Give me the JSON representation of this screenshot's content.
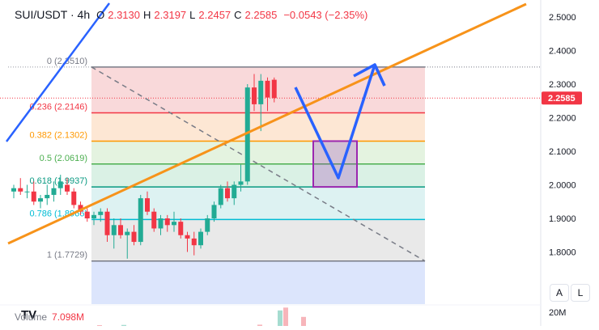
{
  "legend": {
    "symbol": "SUI/USDT · 4h",
    "open_label": "O",
    "open": "2.3130",
    "high_label": "H",
    "high": "2.3197",
    "low_label": "L",
    "low": "2.2457",
    "close_label": "C",
    "close": "2.2585",
    "change": "−0.0543 (−2.35%)"
  },
  "volume": {
    "label": "Volume",
    "value": "7.098M",
    "axis_label": "20M"
  },
  "scale_buttons": {
    "auto": "A",
    "log": "L"
  },
  "logo_text": "TV",
  "colors": {
    "up": "#22ab94",
    "down": "#f23645",
    "trendline": "#f7931a",
    "blue_line": "#2962ff",
    "target_box": "#9c27b0"
  },
  "chart_data": {
    "type": "candlestick",
    "ylim": [
      1.74,
      2.53
    ],
    "y_ticks": [
      "2.5000",
      "2.4000",
      "2.3000",
      "2.2000",
      "2.1000",
      "2.0000",
      "1.9000",
      "1.8000"
    ],
    "last_price": "2.2585",
    "candles": [
      {
        "o": 1.98,
        "h": 2.0,
        "l": 1.96,
        "c": 1.99
      },
      {
        "o": 1.99,
        "h": 2.02,
        "l": 1.97,
        "c": 1.98
      },
      {
        "o": 1.98,
        "h": 2.0,
        "l": 1.96,
        "c": 1.98
      },
      {
        "o": 1.98,
        "h": 2.01,
        "l": 1.94,
        "c": 1.95
      },
      {
        "o": 1.95,
        "h": 1.97,
        "l": 1.93,
        "c": 1.96
      },
      {
        "o": 1.96,
        "h": 2.0,
        "l": 1.94,
        "c": 1.97
      },
      {
        "o": 1.97,
        "h": 2.01,
        "l": 1.95,
        "c": 1.99
      },
      {
        "o": 1.99,
        "h": 2.03,
        "l": 1.97,
        "c": 2.01
      },
      {
        "o": 2.0,
        "h": 2.02,
        "l": 1.97,
        "c": 1.98
      },
      {
        "o": 1.98,
        "h": 1.99,
        "l": 1.93,
        "c": 1.94
      },
      {
        "o": 1.94,
        "h": 1.95,
        "l": 1.91,
        "c": 1.92
      },
      {
        "o": 1.92,
        "h": 1.93,
        "l": 1.89,
        "c": 1.9
      },
      {
        "o": 1.9,
        "h": 1.92,
        "l": 1.88,
        "c": 1.91
      },
      {
        "o": 1.91,
        "h": 1.93,
        "l": 1.89,
        "c": 1.92
      },
      {
        "o": 1.92,
        "h": 1.93,
        "l": 1.83,
        "c": 1.85
      },
      {
        "o": 1.85,
        "h": 1.9,
        "l": 1.81,
        "c": 1.88
      },
      {
        "o": 1.88,
        "h": 1.9,
        "l": 1.84,
        "c": 1.85
      },
      {
        "o": 1.85,
        "h": 1.87,
        "l": 1.78,
        "c": 1.86
      },
      {
        "o": 1.86,
        "h": 1.88,
        "l": 1.82,
        "c": 1.83
      },
      {
        "o": 1.83,
        "h": 1.97,
        "l": 1.82,
        "c": 1.96
      },
      {
        "o": 1.96,
        "h": 1.98,
        "l": 1.91,
        "c": 1.92
      },
      {
        "o": 1.92,
        "h": 1.93,
        "l": 1.86,
        "c": 1.87
      },
      {
        "o": 1.87,
        "h": 1.91,
        "l": 1.85,
        "c": 1.9
      },
      {
        "o": 1.9,
        "h": 1.91,
        "l": 1.86,
        "c": 1.88
      },
      {
        "o": 1.88,
        "h": 1.92,
        "l": 1.86,
        "c": 1.89
      },
      {
        "o": 1.89,
        "h": 1.9,
        "l": 1.84,
        "c": 1.85
      },
      {
        "o": 1.85,
        "h": 1.86,
        "l": 1.8,
        "c": 1.84
      },
      {
        "o": 1.84,
        "h": 1.86,
        "l": 1.79,
        "c": 1.82
      },
      {
        "o": 1.82,
        "h": 1.87,
        "l": 1.81,
        "c": 1.86
      },
      {
        "o": 1.86,
        "h": 1.91,
        "l": 1.85,
        "c": 1.9
      },
      {
        "o": 1.9,
        "h": 1.95,
        "l": 1.89,
        "c": 1.94
      },
      {
        "o": 1.94,
        "h": 2.0,
        "l": 1.93,
        "c": 1.99
      },
      {
        "o": 1.99,
        "h": 2.01,
        "l": 1.95,
        "c": 1.96
      },
      {
        "o": 1.96,
        "h": 2.01,
        "l": 1.94,
        "c": 2.0
      },
      {
        "o": 2.0,
        "h": 2.06,
        "l": 1.98,
        "c": 2.01
      },
      {
        "o": 2.01,
        "h": 2.3,
        "l": 2.0,
        "c": 2.29
      },
      {
        "o": 2.29,
        "h": 2.33,
        "l": 2.22,
        "c": 2.24
      },
      {
        "o": 2.24,
        "h": 2.33,
        "l": 2.16,
        "c": 2.31
      },
      {
        "o": 2.31,
        "h": 2.32,
        "l": 2.22,
        "c": 2.26
      },
      {
        "o": 2.313,
        "h": 2.3197,
        "l": 2.2457,
        "c": 2.2585
      }
    ],
    "volume_bars": [
      {
        "v": 0.3,
        "up": false
      },
      {
        "v": 0.4,
        "up": true
      },
      {
        "v": 0.5,
        "up": false
      },
      {
        "v": 6.0,
        "up": true
      },
      {
        "v": 7.098,
        "up": false
      },
      {
        "v": 3.5,
        "up": false
      }
    ],
    "fib_levels": [
      {
        "ratio": "0",
        "price": 2.351,
        "label": "0 (2.3510)",
        "color": "#787b86",
        "fill": "#f8d2d4"
      },
      {
        "ratio": "0.236",
        "price": 2.2146,
        "label": "0.236 (2.2146)",
        "color": "#f23645",
        "fill": "#fde3cc"
      },
      {
        "ratio": "0.382",
        "price": 2.1302,
        "label": "0.382 (2.1302)",
        "color": "#ff9800",
        "fill": "#dff1da"
      },
      {
        "ratio": "0.5",
        "price": 2.0619,
        "label": "0.5 (2.0619)",
        "color": "#4caf50",
        "fill": "#d4eee0"
      },
      {
        "ratio": "0.618",
        "price": 1.9937,
        "label": "0.618 (1.9937)",
        "color": "#089981",
        "fill": "#d7f0f0"
      },
      {
        "ratio": "0.786",
        "price": 1.8966,
        "label": "0.786 (1.8966)",
        "color": "#00bcd4",
        "fill": "#e5e5e5"
      },
      {
        "ratio": "1",
        "price": 1.7729,
        "label": "1 (1.7729)",
        "color": "#787b86",
        "fill": "#d6e0fb"
      }
    ]
  }
}
